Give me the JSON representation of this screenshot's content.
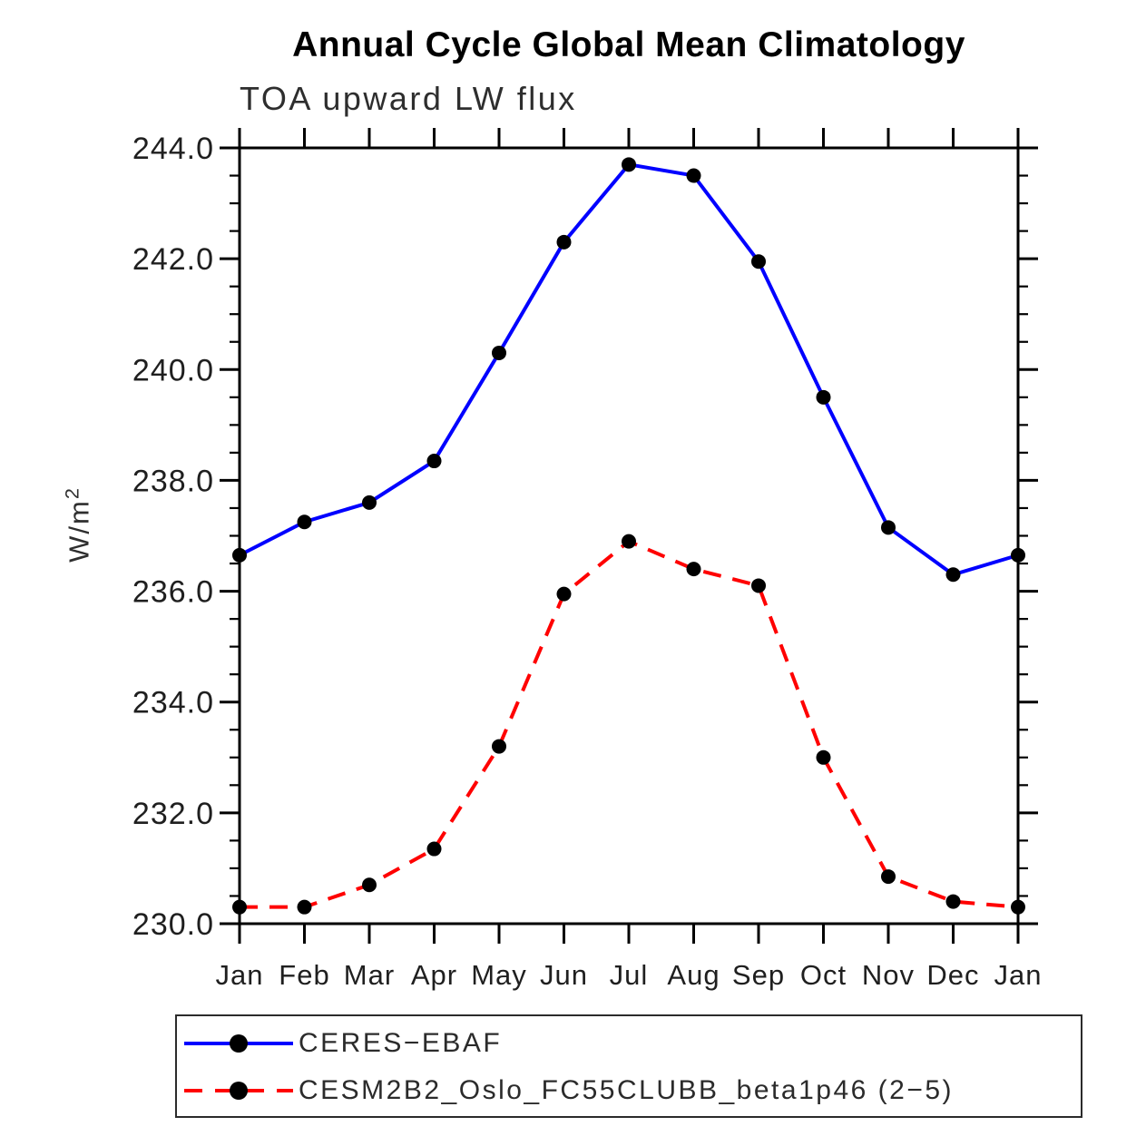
{
  "figure": {
    "title": "Annual Cycle Global Mean Climatology",
    "subtitle": "TOA upward LW flux"
  },
  "chart_data": {
    "type": "line",
    "title": "Annual Cycle Global Mean Climatology",
    "subtitle": "TOA upward LW flux",
    "ylabel": "W/m²",
    "ylabel_base": "W/m",
    "ylabel_exp": "2",
    "categories": [
      "Jan",
      "Feb",
      "Mar",
      "Apr",
      "May",
      "Jun",
      "Jul",
      "Aug",
      "Sep",
      "Oct",
      "Nov",
      "Dec",
      "Jan"
    ],
    "ylim": [
      230.0,
      244.0
    ],
    "ytick_major_step": 2.0,
    "ytick_minor_step": 0.5,
    "ytick_labels": [
      "230.0",
      "232.0",
      "234.0",
      "236.0",
      "238.0",
      "240.0",
      "242.0",
      "244.0"
    ],
    "grid": false,
    "legend_position": "bottom-left-box",
    "axis_color": "#000000",
    "series": [
      {
        "name": "CERES−EBAF",
        "color": "#0000ff",
        "line_style": "solid",
        "marker": "filled-circle",
        "marker_color": "#000000",
        "values": [
          236.65,
          237.25,
          237.6,
          238.35,
          240.3,
          242.3,
          243.7,
          243.5,
          241.95,
          239.5,
          237.15,
          236.3,
          236.65
        ]
      },
      {
        "name": "CESM2B2_Oslo_FC55CLUBB_beta1p46 (2−5)",
        "color": "#ff0000",
        "line_style": "dashed",
        "marker": "filled-circle",
        "marker_color": "#000000",
        "values": [
          230.3,
          230.3,
          230.7,
          231.35,
          233.2,
          235.95,
          236.9,
          236.4,
          236.1,
          233.0,
          230.85,
          230.4,
          230.3
        ]
      }
    ]
  }
}
